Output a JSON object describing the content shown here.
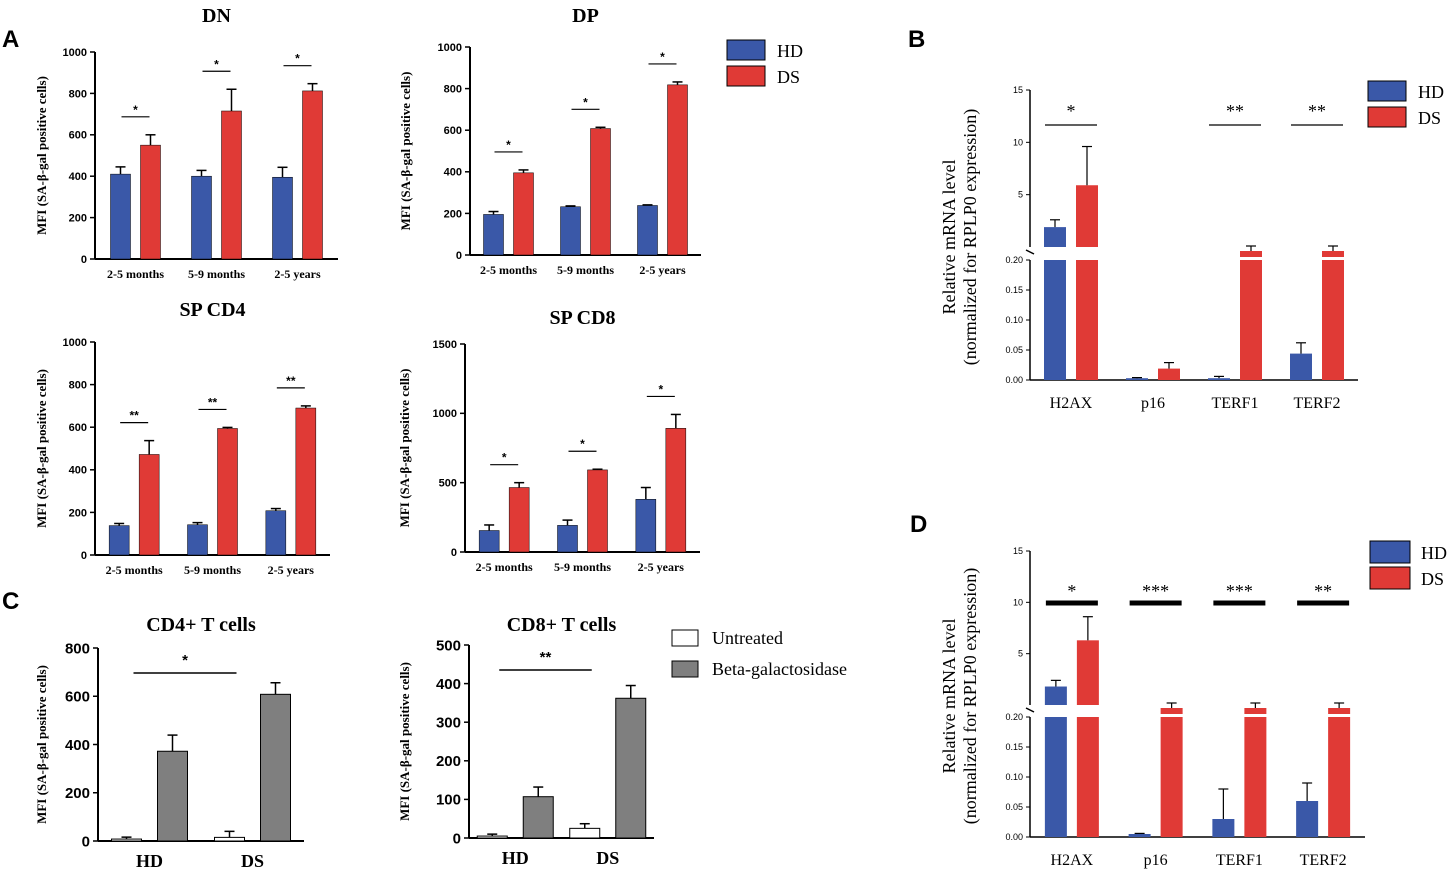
{
  "colors": {
    "hd": "#3a58a8",
    "ds": "#e03a36",
    "untreated": "#ffffff",
    "betagal": "#7f7f7f"
  },
  "panel_letters": {
    "a": "A",
    "b": "B",
    "c": "C",
    "d": "D"
  },
  "legends": {
    "a": {
      "hd": "HD",
      "ds": "DS"
    },
    "b": {
      "hd": "HD",
      "ds": "DS"
    },
    "c": {
      "untreated": "Untreated",
      "betagal": "Beta-galactosidase"
    },
    "d": {
      "hd": "HD",
      "ds": "DS"
    }
  },
  "chart_data": [
    {
      "id": "dn",
      "type": "bar",
      "panel": "A",
      "title": "DN",
      "ylabel": "MFI (SA-β-gal positive cells)",
      "xlabel": "",
      "ylim": [
        0,
        1000
      ],
      "yticks": [
        "0",
        "200",
        "400",
        "600",
        "800",
        "1000"
      ],
      "categories": [
        "2-5 months",
        "5-9 months",
        "2-5 years"
      ],
      "series": [
        {
          "name": "HD",
          "values": [
            410,
            400,
            395
          ],
          "errors": [
            35,
            28,
            48
          ]
        },
        {
          "name": "DS",
          "values": [
            550,
            715,
            812
          ],
          "errors": [
            50,
            105,
            35
          ]
        }
      ],
      "significance": [
        "*",
        "*",
        "*"
      ]
    },
    {
      "id": "dp",
      "type": "bar",
      "panel": "A",
      "title": "DP",
      "ylabel": "MFI (SA-β-gal positive cells)",
      "xlabel": "",
      "ylim": [
        0,
        1000
      ],
      "yticks": [
        "0",
        "200",
        "400",
        "600",
        "800",
        "1000"
      ],
      "categories": [
        "2-5 months",
        "5-9 months",
        "2-5 years"
      ],
      "series": [
        {
          "name": "HD",
          "values": [
            195,
            232,
            238
          ],
          "errors": [
            14,
            4,
            3
          ]
        },
        {
          "name": "DS",
          "values": [
            395,
            608,
            818
          ],
          "errors": [
            14,
            6,
            14
          ]
        }
      ],
      "significance": [
        "*",
        "*",
        "*"
      ]
    },
    {
      "id": "spcd4",
      "type": "bar",
      "panel": "A",
      "title": "SP CD4",
      "ylabel": "MFI (SA-β-gal positive cells)",
      "xlabel": "",
      "ylim": [
        0,
        1000
      ],
      "yticks": [
        "0",
        "200",
        "400",
        "600",
        "800",
        "1000"
      ],
      "categories": [
        "2-5 months",
        "5-9 months",
        "2-5 years"
      ],
      "series": [
        {
          "name": "HD",
          "values": [
            138,
            142,
            208
          ],
          "errors": [
            10,
            10,
            10
          ]
        },
        {
          "name": "DS",
          "values": [
            472,
            594,
            690
          ],
          "errors": [
            65,
            5,
            10
          ]
        }
      ],
      "significance": [
        "**",
        "**",
        "**"
      ]
    },
    {
      "id": "spcd8",
      "type": "bar",
      "panel": "A",
      "title": "SP CD8",
      "ylabel": "MFI (SA-β-gal positive cells)",
      "xlabel": "",
      "ylim": [
        0,
        1500
      ],
      "yticks": [
        "0",
        "500",
        "1000",
        "1500"
      ],
      "categories": [
        "2-5 months",
        "5-9 months",
        "2-5 years"
      ],
      "series": [
        {
          "name": "HD",
          "values": [
            155,
            192,
            380
          ],
          "errors": [
            40,
            38,
            85
          ]
        },
        {
          "name": "DS",
          "values": [
            465,
            592,
            892
          ],
          "errors": [
            35,
            5,
            100
          ]
        }
      ],
      "significance": [
        "*",
        "*",
        "*"
      ]
    },
    {
      "id": "b",
      "type": "bar",
      "panel": "B",
      "title": "",
      "ylabel": "Relative mRNA level",
      "ylabel2": "(normalized for RPLP0 expression)",
      "xlabel": "",
      "broken_axis": true,
      "upper_ylim": [
        0,
        15
      ],
      "upper_yticks": [
        "5",
        "10",
        "15"
      ],
      "lower_ylim": [
        0,
        0.2
      ],
      "lower_yticks": [
        "0.00",
        "0.05",
        "0.10",
        "0.15",
        "0.20"
      ],
      "categories": [
        "H2AX",
        "p16",
        "TERF1",
        "TERF2"
      ],
      "series": [
        {
          "name": "HD",
          "values": [
            1.9,
            0.003,
            0.003,
            0.044
          ],
          "errors": [
            0.7,
            0.001,
            0.003,
            0.018
          ]
        },
        {
          "name": "DS",
          "values": [
            5.9,
            0.019,
            0.7,
            0.7
          ],
          "errors": [
            3.7,
            0.01,
            0.35,
            0.35
          ]
        }
      ],
      "significance": [
        "*",
        "",
        "**",
        "**"
      ]
    },
    {
      "id": "cd4t",
      "type": "bar",
      "panel": "C",
      "title": "CD4+ T cells",
      "ylabel": "MFI (SA-β-gal positive cells)",
      "xlabel": "",
      "ylim": [
        0,
        800
      ],
      "yticks": [
        "0",
        "200",
        "400",
        "600",
        "800"
      ],
      "categories": [
        "HD",
        "DS"
      ],
      "series": [
        {
          "name": "Untreated",
          "values": [
            8,
            15
          ],
          "errors": [
            8,
            25
          ]
        },
        {
          "name": "Beta-galactosidase",
          "values": [
            372,
            608
          ],
          "errors": [
            67,
            48
          ]
        }
      ],
      "significance_bracket": {
        "from": "HD",
        "to": "DS",
        "label": "*"
      }
    },
    {
      "id": "cd8t",
      "type": "bar",
      "panel": "C",
      "title": "CD8+ T cells",
      "ylabel": "MFI (SA-β-gal positive cells)",
      "xlabel": "",
      "ylim": [
        0,
        500
      ],
      "yticks": [
        "0",
        "100",
        "200",
        "300",
        "400",
        "500"
      ],
      "categories": [
        "HD",
        "DS"
      ],
      "series": [
        {
          "name": "Untreated",
          "values": [
            5,
            25
          ],
          "errors": [
            5,
            12
          ]
        },
        {
          "name": "Beta-galactosidase",
          "values": [
            107,
            362
          ],
          "errors": [
            25,
            33
          ]
        }
      ],
      "significance_bracket": {
        "from": "HD",
        "to": "DS",
        "label": "**"
      }
    },
    {
      "id": "d",
      "type": "bar",
      "panel": "D",
      "title": "",
      "ylabel": "Relative mRNA level",
      "ylabel2": "(normalized for RPLP0 expression)",
      "xlabel": "",
      "broken_axis": true,
      "upper_ylim": [
        0,
        15
      ],
      "upper_yticks": [
        "5",
        "10",
        "15"
      ],
      "lower_ylim": [
        0,
        0.2
      ],
      "lower_yticks": [
        "0.00",
        "0.05",
        "0.10",
        "0.15",
        "0.20"
      ],
      "categories": [
        "H2AX",
        "p16",
        "TERF1",
        "TERF2"
      ],
      "series": [
        {
          "name": "HD",
          "values": [
            1.8,
            0.005,
            0.03,
            0.06
          ],
          "errors": [
            0.6,
            0.001,
            0.05,
            0.03
          ]
        },
        {
          "name": "DS",
          "values": [
            6.3,
            0.7,
            0.7,
            0.7
          ],
          "errors": [
            2.3,
            0.35,
            0.35,
            0.35
          ]
        }
      ],
      "significance": [
        "*",
        "***",
        "***",
        "**"
      ]
    }
  ]
}
